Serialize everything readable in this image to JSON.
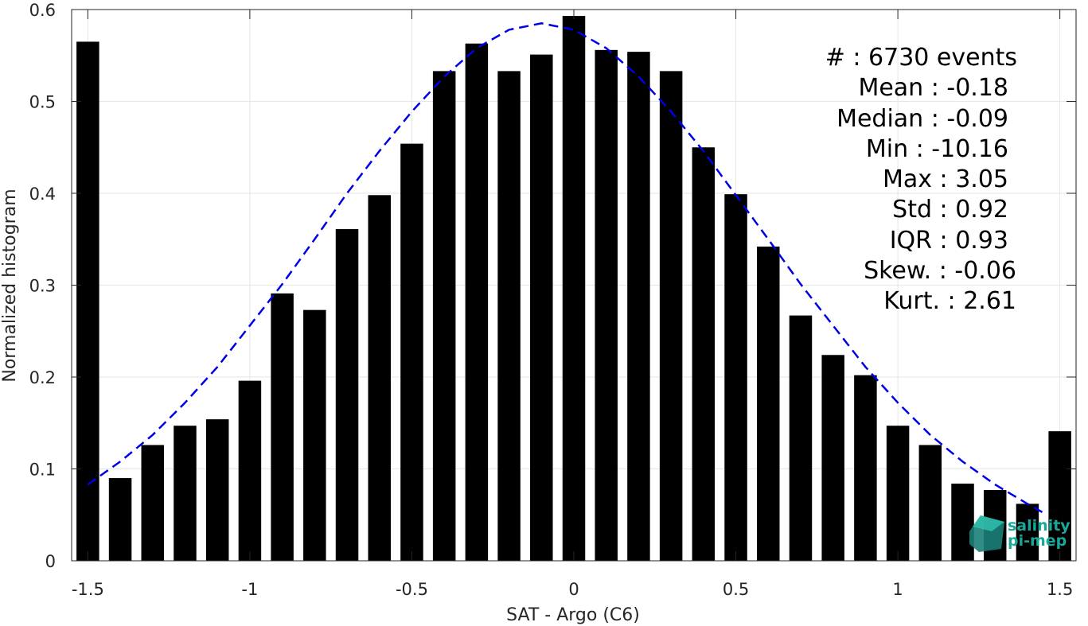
{
  "chart_data": {
    "type": "bar",
    "xlabel": "SAT - Argo (C6)",
    "ylabel": "Normalized histogram",
    "xlim": [
      -1.55,
      1.55
    ],
    "ylim": [
      0,
      0.6
    ],
    "xticks": [
      -1.5,
      -1,
      -0.5,
      0,
      0.5,
      1,
      1.5
    ],
    "xtick_labels": [
      "-1.5",
      "-1",
      "-0.5",
      "0",
      "0.5",
      "1",
      "1.5"
    ],
    "yticks": [
      0,
      0.1,
      0.2,
      0.3,
      0.4,
      0.5,
      0.6
    ],
    "ytick_labels": [
      "0",
      "0.1",
      "0.2",
      "0.3",
      "0.4",
      "0.5",
      "0.6"
    ],
    "grid": true,
    "bar_width": 0.07,
    "bars": {
      "x": [
        -1.5,
        -1.4,
        -1.3,
        -1.2,
        -1.1,
        -1.0,
        -0.9,
        -0.8,
        -0.7,
        -0.6,
        -0.5,
        -0.4,
        -0.3,
        -0.2,
        -0.1,
        0.0,
        0.1,
        0.2,
        0.3,
        0.4,
        0.5,
        0.6,
        0.7,
        0.8,
        0.9,
        1.0,
        1.1,
        1.2,
        1.3,
        1.4,
        1.5
      ],
      "values": [
        0.565,
        0.09,
        0.126,
        0.147,
        0.154,
        0.196,
        0.291,
        0.273,
        0.361,
        0.398,
        0.454,
        0.533,
        0.563,
        0.533,
        0.551,
        0.593,
        0.556,
        0.554,
        0.533,
        0.45,
        0.399,
        0.342,
        0.267,
        0.224,
        0.202,
        0.147,
        0.126,
        0.084,
        0.077,
        0.062,
        0.141
      ],
      "color": "#000000"
    },
    "fit": {
      "style": "dashed",
      "color": "#0000e6",
      "x": [
        -1.5,
        -1.4,
        -1.3,
        -1.2,
        -1.1,
        -1.0,
        -0.9,
        -0.8,
        -0.7,
        -0.6,
        -0.5,
        -0.4,
        -0.3,
        -0.2,
        -0.1,
        0.0,
        0.1,
        0.2,
        0.3,
        0.4,
        0.5,
        0.6,
        0.7,
        0.8,
        0.9,
        1.0,
        1.1,
        1.2,
        1.3,
        1.4,
        1.45
      ],
      "y": [
        0.083,
        0.108,
        0.137,
        0.172,
        0.211,
        0.256,
        0.301,
        0.35,
        0.4,
        0.446,
        0.489,
        0.527,
        0.558,
        0.578,
        0.585,
        0.578,
        0.558,
        0.527,
        0.489,
        0.446,
        0.398,
        0.35,
        0.301,
        0.256,
        0.211,
        0.172,
        0.137,
        0.108,
        0.083,
        0.062,
        0.052
      ]
    },
    "annotations": [
      "#  : 6730 events",
      "Mean : -0.18",
      "Median : -0.09",
      "Min : -10.16",
      "Max : 3.05",
      "Std : 0.92",
      "IQR : 0.93",
      "Skew. : -0.06",
      "Kurt. : 2.61"
    ]
  },
  "logo": {
    "line1": "salinity",
    "line2": "pi-mep",
    "color": "#1aa89a"
  }
}
